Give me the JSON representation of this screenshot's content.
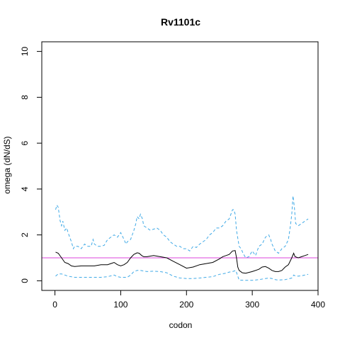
{
  "chart_data": {
    "type": "line",
    "title": "Rv1101c",
    "xlabel": "codon",
    "ylabel": "omega (dN/dS)",
    "xlim": [
      -20,
      400
    ],
    "ylim": [
      -0.42,
      10.42
    ],
    "xticks": [
      0,
      100,
      200,
      300,
      400
    ],
    "yticks": [
      0,
      2,
      4,
      6,
      8,
      10
    ],
    "grid": false,
    "reference_line": {
      "y": 1,
      "color": "#dd44dd"
    },
    "series": [
      {
        "role": "upper",
        "style": "dashed",
        "color": "#3fa9e6",
        "x": [
          1,
          3,
          5,
          8,
          10,
          12,
          15,
          18,
          20,
          25,
          28,
          30,
          35,
          40,
          45,
          50,
          55,
          58,
          60,
          65,
          70,
          75,
          80,
          85,
          90,
          95,
          100,
          105,
          108,
          110,
          115,
          120,
          123,
          125,
          128,
          130,
          133,
          135,
          140,
          145,
          150,
          155,
          160,
          165,
          170,
          175,
          180,
          185,
          190,
          195,
          200,
          205,
          210,
          215,
          220,
          225,
          230,
          235,
          240,
          245,
          250,
          255,
          260,
          265,
          270,
          272,
          274,
          276,
          280,
          283,
          286,
          290,
          295,
          300,
          305,
          310,
          315,
          320,
          325,
          328,
          330,
          335,
          340,
          345,
          350,
          355,
          358,
          360,
          362,
          364,
          366,
          370,
          375,
          380,
          385
        ],
        "y": [
          3.1,
          3.3,
          3.2,
          2.6,
          2.4,
          2.6,
          2.2,
          2.3,
          2.1,
          1.7,
          1.4,
          1.5,
          1.5,
          1.4,
          1.6,
          1.5,
          1.5,
          1.8,
          1.6,
          1.5,
          1.5,
          1.55,
          1.8,
          1.9,
          2.0,
          1.9,
          2.1,
          1.8,
          1.6,
          1.7,
          1.8,
          2.2,
          2.5,
          2.8,
          2.7,
          2.9,
          2.7,
          2.4,
          2.3,
          2.2,
          2.25,
          2.3,
          2.2,
          2.0,
          1.9,
          1.7,
          1.6,
          1.5,
          1.5,
          1.4,
          1.4,
          1.3,
          1.5,
          1.45,
          1.6,
          1.7,
          1.8,
          2.0,
          2.1,
          2.3,
          2.3,
          2.4,
          2.6,
          2.7,
          3.1,
          3.1,
          2.9,
          2.2,
          1.5,
          1.4,
          1.2,
          1.0,
          1.05,
          1.3,
          1.1,
          1.5,
          1.6,
          1.9,
          2.0,
          1.8,
          1.6,
          1.3,
          1.2,
          1.4,
          1.5,
          1.8,
          2.4,
          2.9,
          3.7,
          3.2,
          2.5,
          2.4,
          2.5,
          2.6,
          2.7
        ]
      },
      {
        "role": "estimate",
        "style": "solid",
        "color": "#000000",
        "x": [
          1,
          5,
          10,
          15,
          20,
          25,
          30,
          40,
          50,
          60,
          70,
          80,
          85,
          90,
          95,
          100,
          105,
          110,
          115,
          120,
          125,
          128,
          132,
          135,
          140,
          150,
          160,
          170,
          180,
          190,
          200,
          210,
          220,
          230,
          240,
          250,
          255,
          260,
          265,
          270,
          274,
          276,
          278,
          280,
          285,
          290,
          300,
          310,
          315,
          320,
          325,
          330,
          335,
          340,
          345,
          350,
          355,
          360,
          363,
          365,
          370,
          375,
          380,
          385
        ],
        "y": [
          1.25,
          1.2,
          1.0,
          0.8,
          0.75,
          0.65,
          0.62,
          0.65,
          0.65,
          0.65,
          0.7,
          0.7,
          0.75,
          0.8,
          0.7,
          0.65,
          0.7,
          0.8,
          1.0,
          1.15,
          1.22,
          1.2,
          1.1,
          1.05,
          1.05,
          1.1,
          1.05,
          1.0,
          0.85,
          0.7,
          0.55,
          0.6,
          0.7,
          0.75,
          0.8,
          0.95,
          1.05,
          1.1,
          1.15,
          1.3,
          1.32,
          1.0,
          0.6,
          0.45,
          0.35,
          0.33,
          0.4,
          0.5,
          0.6,
          0.62,
          0.55,
          0.45,
          0.4,
          0.4,
          0.45,
          0.6,
          0.7,
          1.0,
          1.2,
          1.05,
          1.0,
          1.05,
          1.1,
          1.15
        ]
      },
      {
        "role": "lower",
        "style": "dashed",
        "color": "#3fa9e6",
        "x": [
          1,
          5,
          10,
          15,
          20,
          30,
          40,
          50,
          60,
          70,
          80,
          90,
          95,
          100,
          110,
          115,
          120,
          125,
          130,
          140,
          150,
          160,
          170,
          180,
          190,
          200,
          210,
          220,
          230,
          240,
          250,
          260,
          265,
          270,
          275,
          278,
          280,
          290,
          300,
          310,
          320,
          325,
          330,
          335,
          340,
          350,
          360,
          363,
          365,
          370,
          375,
          380,
          385
        ],
        "y": [
          0.2,
          0.3,
          0.3,
          0.25,
          0.2,
          0.15,
          0.15,
          0.15,
          0.15,
          0.15,
          0.18,
          0.25,
          0.18,
          0.15,
          0.15,
          0.25,
          0.4,
          0.45,
          0.45,
          0.4,
          0.42,
          0.4,
          0.35,
          0.2,
          0.12,
          0.1,
          0.1,
          0.12,
          0.15,
          0.18,
          0.28,
          0.33,
          0.38,
          0.4,
          0.45,
          0.2,
          0.03,
          0.02,
          0.02,
          0.05,
          0.1,
          0.12,
          0.1,
          0.05,
          0.03,
          0.05,
          0.12,
          0.25,
          0.22,
          0.2,
          0.22,
          0.25,
          0.28
        ]
      }
    ]
  }
}
